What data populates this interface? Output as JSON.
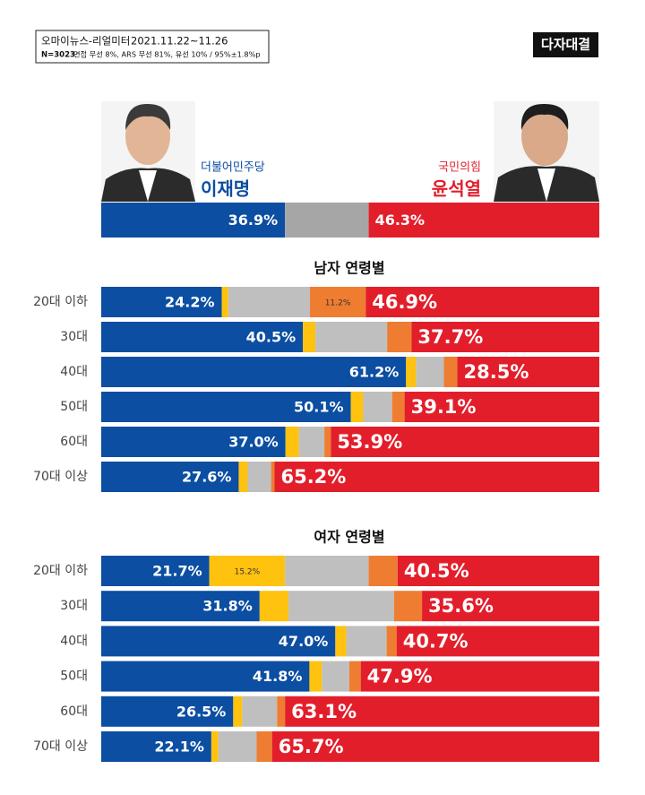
{
  "header": {
    "source": "오마이뉴스-리얼미터",
    "period": "2021.11.22~11.26",
    "sample": "N=3023",
    "method": "면접 무선 8%, ARS 무선 81%, 유선 10% / 95%±1.8%p"
  },
  "badge": "다자대결",
  "candidates": [
    {
      "party": "더불어민주당",
      "name": "이재명",
      "color": "#0b4ea2"
    },
    {
      "party": "국민의힘",
      "name": "윤석열",
      "color": "#e31e2b"
    }
  ],
  "chart_data": [
    {
      "type": "bar",
      "orientation": "horizontal",
      "stacked": true,
      "categories": [
        null
      ],
      "xlim": [
        0,
        100
      ],
      "series": [
        {
          "color": "#0b4ea2",
          "values": [
            36.9
          ],
          "value_labels": [
            "36.9%"
          ]
        },
        {
          "color": "#a6a6a6",
          "values": [
            16.8
          ]
        },
        {
          "color": "#e31e2b",
          "values": [
            46.3
          ],
          "value_labels": [
            "46.3%"
          ]
        }
      ]
    },
    {
      "type": "bar",
      "orientation": "horizontal",
      "stacked": true,
      "title": "남자 연령별",
      "categories": [
        "20대 이하",
        "30대",
        "40대",
        "50대",
        "60대",
        "70대 이상"
      ],
      "xlim": [
        0,
        100
      ],
      "series": [
        {
          "color": "#0b4ea2",
          "values": [
            24.2,
            40.5,
            61.2,
            50.1,
            37.0,
            27.6
          ],
          "value_labels": [
            "24.2%",
            "40.5%",
            "61.2%",
            "50.1%",
            "37.0%",
            "27.6%"
          ]
        },
        {
          "color": "#ffc20e",
          "values": [
            1.3,
            2.5,
            2.0,
            2.5,
            2.7,
            1.8
          ]
        },
        {
          "color": "#bfbfbf",
          "values": [
            16.4,
            14.4,
            5.6,
            5.8,
            5.1,
            4.7
          ]
        },
        {
          "color": "#ee7d31",
          "values": [
            11.2,
            4.9,
            2.7,
            2.5,
            1.3,
            0.7
          ],
          "value_labels": [
            "11.2%",
            null,
            null,
            null,
            null,
            null
          ]
        },
        {
          "color": "#e31e2b",
          "values": [
            46.9,
            37.7,
            28.5,
            39.1,
            53.9,
            65.2
          ],
          "value_labels": [
            "46.9%",
            "37.7%",
            "28.5%",
            "39.1%",
            "53.9%",
            "65.2%"
          ]
        }
      ]
    },
    {
      "type": "bar",
      "orientation": "horizontal",
      "stacked": true,
      "title": "여자 연령별",
      "categories": [
        "20대 이하",
        "30대",
        "40대",
        "50대",
        "60대",
        "70대 이상"
      ],
      "xlim": [
        0,
        100
      ],
      "series": [
        {
          "color": "#0b4ea2",
          "values": [
            21.7,
            31.8,
            47.0,
            41.8,
            26.5,
            22.1
          ],
          "value_labels": [
            "21.7%",
            "31.8%",
            "47.0%",
            "41.8%",
            "26.5%",
            "22.1%"
          ]
        },
        {
          "color": "#ffc20e",
          "values": [
            15.2,
            5.8,
            2.2,
            2.5,
            1.8,
            1.4
          ],
          "value_labels": [
            "15.2%",
            null,
            null,
            null,
            null,
            null
          ]
        },
        {
          "color": "#bfbfbf",
          "values": [
            16.8,
            21.2,
            8.1,
            5.5,
            7.0,
            7.7
          ]
        },
        {
          "color": "#ee7d31",
          "values": [
            5.8,
            5.6,
            2.0,
            2.3,
            1.6,
            3.1
          ]
        },
        {
          "color": "#e31e2b",
          "values": [
            40.5,
            35.6,
            40.7,
            47.9,
            63.1,
            65.7
          ],
          "value_labels": [
            "40.5%",
            "35.6%",
            "40.7%",
            "47.9%",
            "63.1%",
            "65.7%"
          ]
        }
      ]
    }
  ]
}
